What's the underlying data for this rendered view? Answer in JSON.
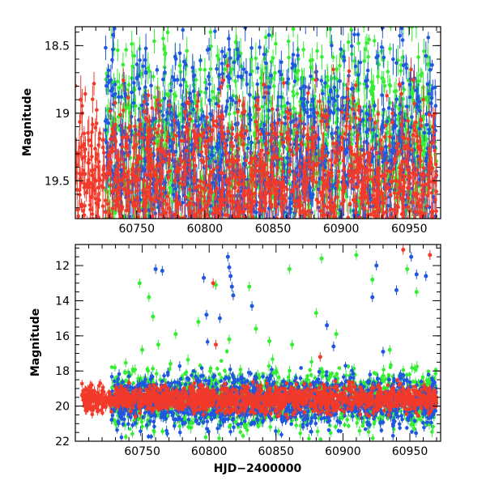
{
  "chart_data": [
    {
      "type": "scatter",
      "panel": "top",
      "xlabel": "",
      "ylabel": "Magnitude",
      "xlim": [
        60705,
        60973
      ],
      "ylim": [
        19.78,
        18.36
      ],
      "y_inverted": true,
      "x_ticks": [
        60750,
        60800,
        60850,
        60900,
        60950
      ],
      "x_tick_labels": [
        "60750",
        "60800",
        "60850",
        "60900",
        "60950"
      ],
      "y_ticks": [
        18.5,
        19,
        19.5
      ],
      "y_tick_labels": [
        "18.5",
        "19",
        "19.5"
      ],
      "series": [
        {
          "name": "green",
          "color": "#33ee33",
          "x_range": [
            60727,
            60970
          ],
          "y_center": 19.3,
          "scatter_sd": 0.45
        },
        {
          "name": "blue",
          "color": "#1f57e0",
          "x_range": [
            60727,
            60970
          ],
          "y_center": 19.4,
          "scatter_sd": 0.45
        },
        {
          "name": "red",
          "color": "#f23a2a",
          "x_range": [
            60705,
            60970
          ],
          "y_center": 19.55,
          "scatter_sd": 0.3
        }
      ]
    },
    {
      "type": "scatter",
      "panel": "bottom",
      "xlabel": "HJD−2400000",
      "ylabel": "Magnitude",
      "xlim": [
        60700,
        60973
      ],
      "ylim": [
        22,
        10.8
      ],
      "y_inverted": true,
      "x_ticks": [
        60750,
        60800,
        60850,
        60900,
        60950
      ],
      "x_tick_labels": [
        "60750",
        "60800",
        "60850",
        "60900",
        "60950"
      ],
      "y_ticks": [
        12,
        14,
        16,
        18,
        20,
        22
      ],
      "y_tick_labels": [
        "12",
        "14",
        "16",
        "18",
        "20",
        "22"
      ],
      "series": [
        {
          "name": "green",
          "color": "#33ee33",
          "x_range": [
            60727,
            60970
          ],
          "y_center": 19.6,
          "scatter_sd": 0.8,
          "outliers": [
            [
              60748,
              13.0
            ],
            [
              60750,
              16.8
            ],
            [
              60755,
              13.8
            ],
            [
              60758,
              14.9
            ],
            [
              60762,
              16.5
            ],
            [
              60775,
              15.9
            ],
            [
              60792,
              15.2
            ],
            [
              60805,
              13.1
            ],
            [
              60815,
              16.2
            ],
            [
              60830,
              13.2
            ],
            [
              60835,
              15.6
            ],
            [
              60845,
              16.3
            ],
            [
              60860,
              12.2
            ],
            [
              60862,
              16.5
            ],
            [
              60880,
              14.7
            ],
            [
              60884,
              11.6
            ],
            [
              60895,
              15.9
            ],
            [
              60910,
              11.4
            ],
            [
              60922,
              12.8
            ],
            [
              60935,
              16.8
            ],
            [
              60948,
              12.2
            ],
            [
              60955,
              13.5
            ]
          ]
        },
        {
          "name": "blue",
          "color": "#1f57e0",
          "x_range": [
            60727,
            60970
          ],
          "y_center": 19.7,
          "scatter_sd": 0.7,
          "outliers": [
            [
              60760,
              12.2
            ],
            [
              60765,
              12.3
            ],
            [
              60796,
              12.7
            ],
            [
              60798,
              14.8
            ],
            [
              60808,
              15.0
            ],
            [
              60814,
              11.5
            ],
            [
              60815,
              12.1
            ],
            [
              60816,
              12.6
            ],
            [
              60817,
              13.2
            ],
            [
              60818,
              13.7
            ],
            [
              60832,
              14.3
            ],
            [
              60888,
              15.4
            ],
            [
              60893,
              16.6
            ],
            [
              60922,
              13.8
            ],
            [
              60925,
              12.0
            ],
            [
              60930,
              16.9
            ],
            [
              60940,
              13.4
            ],
            [
              60951,
              11.5
            ],
            [
              60955,
              12.5
            ],
            [
              60962,
              12.6
            ]
          ]
        },
        {
          "name": "red",
          "color": "#f23a2a",
          "x_range": [
            60705,
            60970
          ],
          "y_center": 19.6,
          "scatter_sd": 0.35,
          "outliers": [
            [
              60803,
              13.0
            ],
            [
              60805,
              16.5
            ],
            [
              60945,
              11.1
            ],
            [
              60965,
              11.4
            ],
            [
              60883,
              17.2
            ]
          ]
        }
      ]
    }
  ]
}
